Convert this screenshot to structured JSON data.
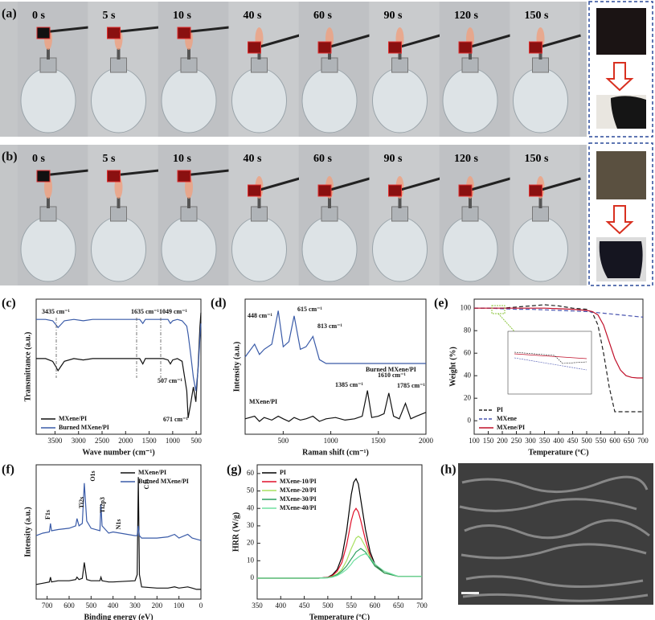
{
  "panel_labels": [
    "(a)",
    "(b)",
    "(c)",
    "(d)",
    "(e)",
    "(f)",
    "(g)",
    "(h)"
  ],
  "photo_rows": [
    {
      "times": [
        "0 s",
        "5 s",
        "10 s",
        "40 s",
        "60 s",
        "90 s",
        "120 s",
        "150 s"
      ]
    },
    {
      "times": [
        "0 s",
        "5 s",
        "10 s",
        "40 s",
        "60 s",
        "90 s",
        "120 s",
        "150 s"
      ]
    }
  ],
  "chart_data": [
    {
      "type": "line",
      "xlabel": "Wave number (cm⁻¹)",
      "ylabel": "Transmittance (a.u.)",
      "xlim": [
        3900,
        400
      ],
      "xticks": [
        3500,
        3000,
        2500,
        2000,
        1500,
        1000,
        500
      ],
      "ylim": [
        0,
        100
      ],
      "legend": "lower left",
      "annotations": [
        "3435 cm⁻¹",
        "1635 cm⁻¹",
        "1049 cm⁻¹",
        "507 cm⁻¹",
        "671 cm⁻¹"
      ],
      "x": [
        3900,
        3700,
        3550,
        3480,
        3435,
        3380,
        3300,
        3100,
        2900,
        2700,
        2500,
        2200,
        2000,
        1800,
        1700,
        1635,
        1580,
        1400,
        1200,
        1100,
        1049,
        1000,
        900,
        800,
        700,
        671,
        620,
        560,
        507,
        460,
        420,
        400
      ],
      "series": [
        {
          "name": "MXene/PI",
          "color": "#111111",
          "values": [
            56,
            56,
            54,
            50,
            47,
            50,
            54,
            56,
            55,
            56,
            56,
            56,
            56,
            56,
            56,
            52,
            56,
            56,
            56,
            55,
            52,
            55,
            56,
            54,
            32,
            12,
            22,
            35,
            24,
            50,
            80,
            90
          ]
        },
        {
          "name": "Burned MXene/PI",
          "color": "#3a5ba8",
          "values": [
            85,
            85,
            84,
            81,
            79,
            81,
            84,
            85,
            84,
            85,
            85,
            85,
            85,
            85,
            85,
            82,
            85,
            85,
            85,
            85,
            82,
            84,
            85,
            84,
            80,
            74,
            60,
            42,
            32,
            48,
            72,
            82
          ]
        }
      ]
    },
    {
      "type": "line",
      "xlabel": "Raman shift (cm⁻¹)",
      "ylabel": "Intensity (a.u.)",
      "xlim": [
        100,
        2000
      ],
      "xticks": [
        500,
        1000,
        1500,
        2000
      ],
      "ylim": [
        0,
        105
      ],
      "legend": "inline",
      "annotations": [
        "448 cm⁻¹",
        "615 cm⁻¹",
        "813 cm⁻¹",
        "1385 cm⁻¹",
        "1610 cm⁻¹",
        "1785 cm⁻¹"
      ],
      "x": [
        100,
        200,
        250,
        300,
        380,
        448,
        500,
        560,
        615,
        680,
        740,
        813,
        880,
        950,
        1050,
        1150,
        1250,
        1330,
        1385,
        1430,
        1500,
        1560,
        1610,
        1660,
        1720,
        1785,
        1840,
        1900,
        2000
      ],
      "series": [
        {
          "name": "Burned MXene/PI",
          "color": "#3a5ba8",
          "values": [
            60,
            70,
            62,
            66,
            70,
            96,
            68,
            72,
            92,
            66,
            68,
            76,
            58,
            55,
            55,
            55,
            55,
            55,
            55,
            55,
            55,
            55,
            55,
            55,
            55,
            55,
            55,
            55,
            55
          ]
        },
        {
          "name": "MXene/PI",
          "color": "#111111",
          "values": [
            12,
            14,
            10,
            13,
            11,
            14,
            12,
            10,
            13,
            11,
            12,
            14,
            10,
            12,
            13,
            11,
            12,
            14,
            34,
            13,
            14,
            16,
            32,
            14,
            12,
            24,
            12,
            14,
            17
          ]
        }
      ]
    },
    {
      "type": "line",
      "xlabel": "Temperature (ºC)",
      "ylabel": "Weight (%)",
      "xlim": [
        100,
        700
      ],
      "xticks": [
        100,
        150,
        200,
        250,
        300,
        350,
        400,
        450,
        500,
        550,
        600,
        650,
        700
      ],
      "ylim": [
        -12,
        108
      ],
      "yticks": [
        0,
        20,
        40,
        60,
        80,
        100
      ],
      "legend": "lower left",
      "x": [
        100,
        150,
        200,
        250,
        300,
        350,
        400,
        450,
        500,
        520,
        540,
        560,
        580,
        600,
        620,
        640,
        660,
        680,
        700
      ],
      "series": [
        {
          "name": "PI",
          "color": "#222222",
          "dash": true,
          "values": [
            100,
            100,
            100,
            101,
            102,
            103,
            102,
            100,
            99,
            96,
            85,
            60,
            30,
            8,
            8,
            8,
            8,
            8,
            8
          ]
        },
        {
          "name": "MXene",
          "color": "#4a55b0",
          "dash": true,
          "values": [
            100,
            100,
            99.5,
            99,
            99,
            98.5,
            98,
            97.5,
            97,
            96.5,
            96,
            95.5,
            95,
            94.5,
            94,
            93.5,
            93,
            92.5,
            92
          ]
        },
        {
          "name": "MXene/PI",
          "color": "#c0102a",
          "values": [
            100,
            100,
            100,
            100,
            100,
            100,
            99.5,
            99,
            98,
            97,
            94,
            85,
            70,
            55,
            45,
            40,
            38.5,
            38,
            38
          ]
        }
      ]
    },
    {
      "type": "line",
      "xlabel": "Binding energy (eV)",
      "ylabel": "Intensity (a.u.)",
      "xlim": [
        750,
        0
      ],
      "xticks": [
        700,
        600,
        500,
        400,
        300,
        200,
        100,
        0
      ],
      "ylim": [
        0,
        110
      ],
      "legend": "upper right",
      "annotations": [
        "F1s",
        "Ti2s",
        "O1s",
        "Ti2p3",
        "N1s",
        "C1s"
      ],
      "x": [
        750,
        720,
        690,
        685,
        680,
        650,
        600,
        570,
        564,
        555,
        540,
        531,
        520,
        500,
        460,
        455,
        450,
        420,
        400,
        300,
        290,
        285,
        280,
        270,
        200,
        150,
        120,
        100,
        60,
        40,
        20,
        0
      ],
      "series": [
        {
          "name": "MXene/PI",
          "color": "#111111",
          "values": [
            12,
            13,
            14,
            18,
            14,
            15,
            15,
            16,
            18,
            16,
            17,
            30,
            16,
            15,
            15,
            18,
            15,
            14,
            14,
            15,
            20,
            100,
            20,
            10,
            9,
            9,
            10,
            9,
            10,
            9,
            8,
            8
          ]
        },
        {
          "name": "Burned MXene/PI",
          "color": "#3a5ba8",
          "values": [
            52,
            54,
            55,
            62,
            56,
            57,
            58,
            60,
            66,
            60,
            62,
            95,
            64,
            58,
            56,
            78,
            60,
            54,
            55,
            52,
            52,
            60,
            52,
            50,
            50,
            51,
            53,
            50,
            53,
            50,
            49,
            48
          ]
        }
      ]
    },
    {
      "type": "line",
      "xlabel": "Temperature (ºC)",
      "ylabel": "HRR (W/g)",
      "xlim": [
        350,
        700
      ],
      "xticks": [
        350,
        400,
        450,
        500,
        550,
        600,
        650,
        700
      ],
      "ylim": [
        -12,
        65
      ],
      "yticks": [
        0,
        10,
        20,
        30,
        40,
        50,
        60
      ],
      "legend": "upper left",
      "x": [
        350,
        400,
        450,
        480,
        500,
        510,
        520,
        530,
        540,
        550,
        555,
        560,
        565,
        570,
        580,
        590,
        600,
        620,
        650,
        700
      ],
      "series": [
        {
          "name": "PI",
          "color": "#000000",
          "values": [
            0,
            0,
            0,
            0,
            0.5,
            2,
            5,
            12,
            27,
            48,
            55,
            57,
            54,
            45,
            28,
            15,
            8,
            3,
            1,
            1
          ]
        },
        {
          "name": "MXene-10/PI",
          "color": "#e0102a",
          "values": [
            0,
            0,
            0,
            0,
            0.4,
            1.5,
            4,
            9,
            19,
            33,
            38,
            40,
            38,
            33,
            22,
            13,
            7,
            3,
            1,
            1
          ]
        },
        {
          "name": "MXene-20/PI",
          "color": "#a8e060",
          "values": [
            0,
            0,
            0,
            0,
            0.3,
            1,
            2.5,
            5,
            10,
            17,
            20,
            23,
            24,
            23,
            18,
            12,
            7,
            3,
            1,
            1
          ]
        },
        {
          "name": "MXene-30/PI",
          "color": "#2ca060",
          "values": [
            0,
            0,
            0,
            0,
            0.2,
            0.8,
            2,
            4,
            7,
            11,
            13,
            15,
            16,
            17,
            15,
            11,
            7,
            3,
            1,
            1
          ]
        },
        {
          "name": "MXene-40/PI",
          "color": "#70e0a0",
          "values": [
            0,
            0,
            0,
            0,
            0.2,
            0.6,
            1.5,
            3,
            5,
            8,
            10,
            11,
            12,
            13,
            14,
            12,
            8,
            4,
            1,
            1
          ]
        }
      ]
    }
  ]
}
